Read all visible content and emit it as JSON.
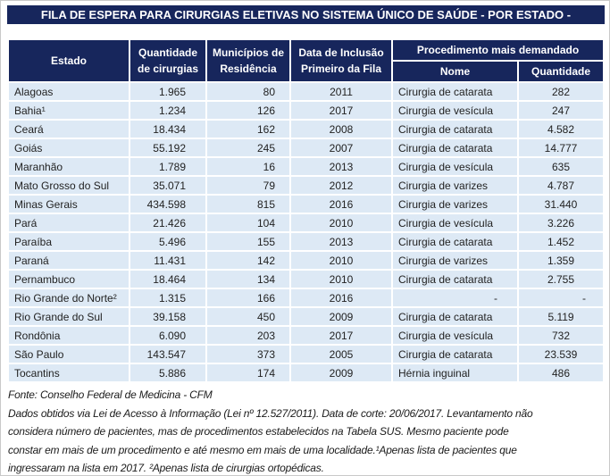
{
  "title": "FILA DE ESPERA PARA CIRURGIAS ELETIVAS NO SISTEMA ÚNICO DE SAÚDE - POR ESTADO -",
  "colors": {
    "header_navy": "#17265c",
    "row_light_blue": "#dde9f5",
    "header_text": "#ffffff",
    "body_text": "#222222"
  },
  "table": {
    "headers": {
      "estado": "Estado",
      "cirurgias_l1": "Quantidade",
      "cirurgias_l2": "de cirurgias",
      "municipios_l1": "Municípios de",
      "municipios_l2": "Residência",
      "inclusao_l1": "Data de Inclusão",
      "inclusao_l2": "Primeiro da Fila",
      "procedimento": "Procedimento mais demandado",
      "nome": "Nome",
      "quantidade": "Quantidade"
    }
  },
  "chart_data": {
    "type": "table",
    "title": "FILA DE ESPERA PARA CIRURGIAS ELETIVAS NO SISTEMA ÚNICO DE SAÚDE - POR ESTADO -",
    "columns": [
      "Estado",
      "Quantidade de cirurgias",
      "Municípios de Residência",
      "Data de Inclusão Primeiro da Fila",
      "Procedimento mais demandado - Nome",
      "Procedimento mais demandado - Quantidade"
    ],
    "rows": [
      [
        "Alagoas",
        "1.965",
        "80",
        "2011",
        "Cirurgia de catarata",
        "282"
      ],
      [
        "Bahia¹",
        "1.234",
        "126",
        "2017",
        "Cirurgia de vesícula",
        "247"
      ],
      [
        "Ceará",
        "18.434",
        "162",
        "2008",
        "Cirurgia de catarata",
        "4.582"
      ],
      [
        "Goiás",
        "55.192",
        "245",
        "2007",
        "Cirurgia de catarata",
        "14.777"
      ],
      [
        "Maranhão",
        "1.789",
        "16",
        "2013",
        "Cirurgia de vesícula",
        "635"
      ],
      [
        "Mato Grosso do Sul",
        "35.071",
        "79",
        "2012",
        "Cirurgia de varizes",
        "4.787"
      ],
      [
        "Minas Gerais",
        "434.598",
        "815",
        "2016",
        "Cirurgia de varizes",
        "31.440"
      ],
      [
        "Pará",
        "21.426",
        "104",
        "2010",
        "Cirurgia de vesícula",
        "3.226"
      ],
      [
        "Paraíba",
        "5.496",
        "155",
        "2013",
        "Cirurgia de catarata",
        "1.452"
      ],
      [
        "Paraná",
        "11.431",
        "142",
        "2010",
        "Cirurgia de varizes",
        "1.359"
      ],
      [
        "Pernambuco",
        "18.464",
        "134",
        "2010",
        "Cirurgia de catarata",
        "2.755"
      ],
      [
        "Rio Grande do Norte²",
        "1.315",
        "166",
        "2016",
        "-",
        "-"
      ],
      [
        "Rio Grande do Sul",
        "39.158",
        "450",
        "2009",
        "Cirurgia de catarata",
        "5.119"
      ],
      [
        "Rondônia",
        "6.090",
        "203",
        "2017",
        "Cirurgia de vesícula",
        "732"
      ],
      [
        "São Paulo",
        "143.547",
        "373",
        "2005",
        "Cirurgia de catarata",
        "23.539"
      ],
      [
        "Tocantins",
        "5.886",
        "174",
        "2009",
        "Hérnia inguinal",
        "486"
      ]
    ]
  },
  "footer": {
    "fonte": "Fonte: Conselho Federal de Medicina - CFM",
    "note_lines": [
      "Dados obtidos via Lei de Acesso à Informação (Lei nº 12.527/2011). Data de corte: 20/06/2017. Levantamento não",
      "considera número de pacientes, mas de procedimentos estabelecidos na Tabela SUS. Mesmo paciente pode",
      "constar em mais de um procedimento e até mesmo em mais de uma localidade.¹Apenas lista de pacientes que",
      "ingressaram na lista em 2017. ²Apenas lista de cirurgias ortopédicas."
    ]
  }
}
